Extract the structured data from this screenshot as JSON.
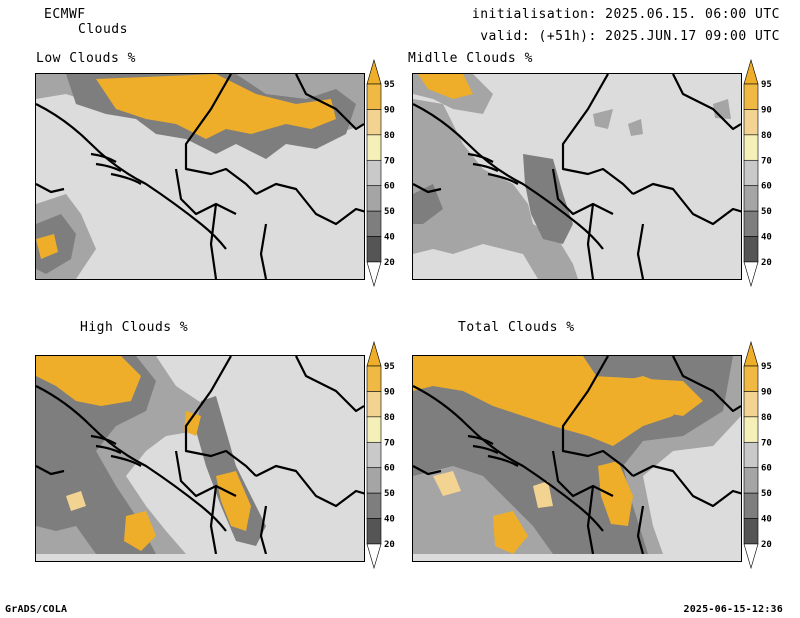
{
  "header": {
    "model": "ECMWF",
    "product": "Clouds",
    "init": "initialisation: 2025.06.15. 06:00 UTC",
    "valid": "valid: (+51h): 2025.JUN.17 09:00 UTC"
  },
  "panels": [
    {
      "title": "Low Clouds %"
    },
    {
      "title": "Midlle Clouds %"
    },
    {
      "title": "High Clouds %"
    },
    {
      "title": "Total Clouds %"
    }
  ],
  "colorbar": {
    "levels": [
      "20",
      "40",
      "50",
      "60",
      "70",
      "80",
      "90",
      "95"
    ],
    "colors": [
      "#ffffff",
      "#555555",
      "#7e7e7e",
      "#a5a5a5",
      "#c9c9c9",
      "#f5f0b8",
      "#f2d391",
      "#f0b943",
      "#eeae2a"
    ]
  },
  "footer": {
    "left": "GrADS/COLA",
    "right": "2025-06-15-12:36"
  }
}
